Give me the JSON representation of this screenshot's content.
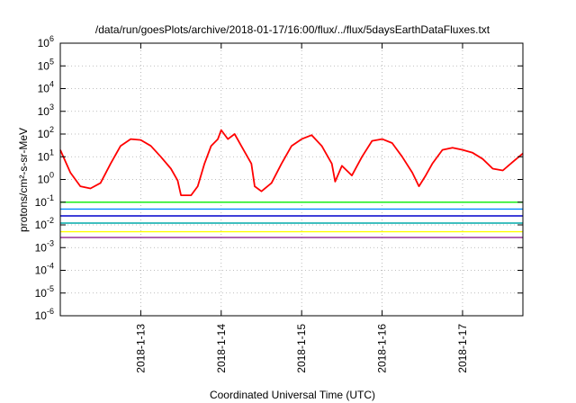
{
  "chart_data": {
    "type": "line",
    "title": "/data/run/goesPlots/archive/2018-01-17/16:00/flux/../flux/5daysEarthDataFluxes.txt",
    "xlabel": "Coordinated Universal Time (UTC)",
    "ylabel": "protons/cm²-s-sr-MeV",
    "y_scale": "log",
    "ylim": [
      1e-06,
      1000000.0
    ],
    "y_ticks": [
      {
        "value": 1e-06,
        "base": "10",
        "exp": "-6"
      },
      {
        "value": 1e-05,
        "base": "10",
        "exp": "-5"
      },
      {
        "value": 0.0001,
        "base": "10",
        "exp": "-4"
      },
      {
        "value": 0.001,
        "base": "10",
        "exp": "-3"
      },
      {
        "value": 0.01,
        "base": "10",
        "exp": "-2"
      },
      {
        "value": 0.1,
        "base": "10",
        "exp": "-1"
      },
      {
        "value": 1,
        "base": "10",
        "exp": "0"
      },
      {
        "value": 10.0,
        "base": "10",
        "exp": "1"
      },
      {
        "value": 100.0,
        "base": "10",
        "exp": "2"
      },
      {
        "value": 1000.0,
        "base": "10",
        "exp": "3"
      },
      {
        "value": 10000.0,
        "base": "10",
        "exp": "4"
      },
      {
        "value": 100000.0,
        "base": "10",
        "exp": "5"
      },
      {
        "value": 1000000.0,
        "base": "10",
        "exp": "6"
      }
    ],
    "x_type": "date",
    "xlim": [
      "2018-01-12 00:00",
      "2018-01-17 18:00"
    ],
    "x_ticks": [
      "2018-1-13",
      "2018-1-14",
      "2018-1-15",
      "2018-1-16",
      "2018-1-17"
    ],
    "grid": true,
    "legend": "none",
    "series": [
      {
        "color": "#ff0000",
        "points": [
          [
            "2018-01-12 00:00",
            20
          ],
          [
            "2018-01-12 03:00",
            2.0
          ],
          [
            "2018-01-12 06:00",
            0.5
          ],
          [
            "2018-01-12 09:00",
            0.4
          ],
          [
            "2018-01-12 12:00",
            0.7
          ],
          [
            "2018-01-12 15:00",
            5
          ],
          [
            "2018-01-12 18:00",
            30
          ],
          [
            "2018-01-12 21:00",
            60
          ],
          [
            "2018-01-13 00:00",
            55
          ],
          [
            "2018-01-13 03:00",
            30
          ],
          [
            "2018-01-13 06:00",
            10
          ],
          [
            "2018-01-13 09:00",
            3
          ],
          [
            "2018-01-13 11:00",
            0.9
          ],
          [
            "2018-01-13 12:00",
            0.2
          ],
          [
            "2018-01-13 15:00",
            0.2
          ],
          [
            "2018-01-13 17:00",
            0.5
          ],
          [
            "2018-01-13 19:00",
            5
          ],
          [
            "2018-01-13 21:00",
            30
          ],
          [
            "2018-01-13 23:00",
            60
          ],
          [
            "2018-01-14 00:00",
            150
          ],
          [
            "2018-01-14 02:00",
            60
          ],
          [
            "2018-01-14 04:00",
            100
          ],
          [
            "2018-01-14 06:00",
            30
          ],
          [
            "2018-01-14 09:00",
            5
          ],
          [
            "2018-01-14 10:00",
            0.5
          ],
          [
            "2018-01-14 12:00",
            0.3
          ],
          [
            "2018-01-14 15:00",
            0.7
          ],
          [
            "2018-01-14 18:00",
            5
          ],
          [
            "2018-01-14 21:00",
            30
          ],
          [
            "2018-01-15 00:00",
            60
          ],
          [
            "2018-01-15 03:00",
            90
          ],
          [
            "2018-01-15 06:00",
            30
          ],
          [
            "2018-01-15 09:00",
            5
          ],
          [
            "2018-01-15 10:00",
            0.8
          ],
          [
            "2018-01-15 12:00",
            4
          ],
          [
            "2018-01-15 15:00",
            1.5
          ],
          [
            "2018-01-15 18:00",
            10
          ],
          [
            "2018-01-15 21:00",
            50
          ],
          [
            "2018-01-16 00:00",
            60
          ],
          [
            "2018-01-16 03:00",
            40
          ],
          [
            "2018-01-16 06:00",
            10
          ],
          [
            "2018-01-16 09:00",
            2
          ],
          [
            "2018-01-16 11:00",
            0.5
          ],
          [
            "2018-01-16 13:00",
            1.5
          ],
          [
            "2018-01-16 15:00",
            5
          ],
          [
            "2018-01-16 18:00",
            20
          ],
          [
            "2018-01-16 21:00",
            25
          ],
          [
            "2018-01-17 00:00",
            20
          ],
          [
            "2018-01-17 03:00",
            15
          ],
          [
            "2018-01-17 06:00",
            8
          ],
          [
            "2018-01-17 09:00",
            3
          ],
          [
            "2018-01-17 12:00",
            2.5
          ],
          [
            "2018-01-17 15:00",
            6
          ],
          [
            "2018-01-17 18:00",
            14
          ]
        ]
      },
      {
        "color": "#00ee00",
        "points": [
          [
            "2018-01-12 00:00",
            0.1
          ],
          [
            "2018-01-14 12:00",
            0.1
          ],
          [
            "2018-01-17 18:00",
            0.1
          ]
        ]
      },
      {
        "color": "#0088ff",
        "points": [
          [
            "2018-01-12 00:00",
            0.05
          ],
          [
            "2018-01-14 12:00",
            0.05
          ],
          [
            "2018-01-17 18:00",
            0.05
          ]
        ]
      },
      {
        "color": "#00aaaa",
        "points": [
          [
            "2018-01-12 00:00",
            0.012
          ],
          [
            "2018-01-14 12:00",
            0.012
          ],
          [
            "2018-01-17 18:00",
            0.012
          ]
        ]
      },
      {
        "color": "#0000cc",
        "points": [
          [
            "2018-01-12 00:00",
            0.025
          ],
          [
            "2018-01-14 12:00",
            0.025
          ],
          [
            "2018-01-17 18:00",
            0.025
          ]
        ]
      },
      {
        "color": "#ffff00",
        "points": [
          [
            "2018-01-12 00:00",
            0.005
          ],
          [
            "2018-01-14 12:00",
            0.005
          ],
          [
            "2018-01-17 18:00",
            0.005
          ]
        ]
      },
      {
        "color": "#993399",
        "points": [
          [
            "2018-01-12 00:00",
            0.0028
          ],
          [
            "2018-01-14 12:00",
            0.0028
          ],
          [
            "2018-01-17 18:00",
            0.0028
          ]
        ]
      }
    ]
  }
}
